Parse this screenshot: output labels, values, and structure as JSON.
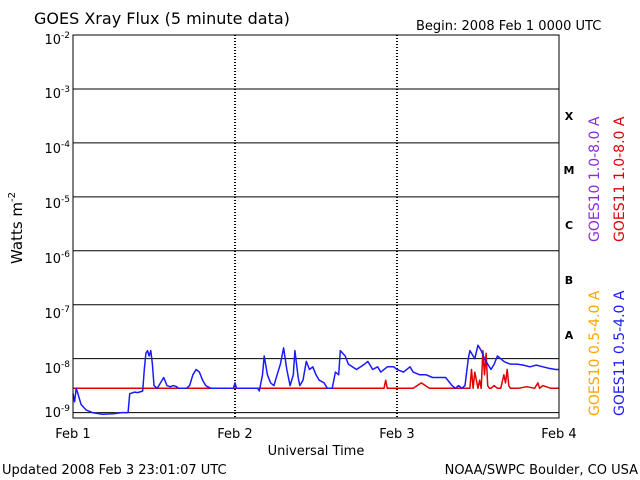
{
  "chart_data": {
    "type": "line",
    "title": "GOES Xray Flux (5 minute data)",
    "begin_label": "Begin:  2008 Feb 1 0000 UTC",
    "xlabel": "Universal Time",
    "ylabel": "Watts m",
    "ylabel_superscript": "-2",
    "x_unit": "days since 2008 Feb 1 0000 UTC",
    "xlim": [
      0,
      3
    ],
    "x_ticks": [
      {
        "value": 0,
        "label": "Feb 1"
      },
      {
        "value": 1,
        "label": "Feb 2"
      },
      {
        "value": 2,
        "label": "Feb 3"
      },
      {
        "value": 3,
        "label": "Feb 4"
      }
    ],
    "y_scale": "log",
    "ylim_exponent": [
      -9.1,
      -2
    ],
    "y_ticks": [
      {
        "base": "10",
        "exp": "-2",
        "value": -2
      },
      {
        "base": "10",
        "exp": "-3",
        "value": -3
      },
      {
        "base": "10",
        "exp": "-4",
        "value": -4
      },
      {
        "base": "10",
        "exp": "-5",
        "value": -5
      },
      {
        "base": "10",
        "exp": "-6",
        "value": -6
      },
      {
        "base": "10",
        "exp": "-7",
        "value": -7
      },
      {
        "base": "10",
        "exp": "-8",
        "value": -8
      },
      {
        "base": "10",
        "exp": "-9",
        "value": -9
      }
    ],
    "flare_classes": [
      {
        "label": "X",
        "value": -3.5
      },
      {
        "label": "M",
        "value": -4.5
      },
      {
        "label": "C",
        "value": -5.5
      },
      {
        "label": "B",
        "value": -6.5
      },
      {
        "label": "A",
        "value": -7.5
      }
    ],
    "grid": "horizontal lines at each decade; dashed vertical lines at day boundaries",
    "legend": [
      {
        "name": "GOES10 1.0-8.0 A",
        "color": "#8a2be2"
      },
      {
        "name": "GOES11 1.0-8.0 A",
        "color": "#e00000"
      },
      {
        "name": "GOES10 0.5-4.0 A",
        "color": "#ffa500"
      },
      {
        "name": "GOES11 0.5-4.0 A",
        "color": "#1a1aff"
      }
    ],
    "series": [
      {
        "name": "GOES11 0.5-4.0 A",
        "color": "#1a1aff",
        "x": [
          0.0,
          0.01,
          0.02,
          0.03,
          0.05,
          0.08,
          0.12,
          0.18,
          0.25,
          0.3,
          0.34,
          0.35,
          0.38,
          0.4,
          0.43,
          0.44,
          0.45,
          0.46,
          0.47,
          0.48,
          0.49,
          0.5,
          0.52,
          0.54,
          0.56,
          0.58,
          0.6,
          0.62,
          0.64,
          0.65,
          0.7,
          0.72,
          0.74,
          0.76,
          0.78,
          0.8,
          0.82,
          0.85,
          0.88,
          0.92,
          0.96,
          0.99,
          1.0,
          1.01,
          1.05,
          1.1,
          1.14,
          1.15,
          1.17,
          1.18,
          1.2,
          1.22,
          1.24,
          1.26,
          1.28,
          1.3,
          1.32,
          1.34,
          1.36,
          1.37,
          1.39,
          1.4,
          1.42,
          1.44,
          1.46,
          1.48,
          1.5,
          1.52,
          1.55,
          1.57,
          1.6,
          1.62,
          1.64,
          1.65,
          1.68,
          1.7,
          1.75,
          1.8,
          1.82,
          1.85,
          1.88,
          1.9,
          1.94,
          1.98,
          2.0,
          2.04,
          2.08,
          2.1,
          2.14,
          2.18,
          2.22,
          2.25,
          2.3,
          2.34,
          2.36,
          2.38,
          2.4,
          2.42,
          2.44,
          2.45,
          2.46,
          2.47,
          2.48,
          2.5,
          2.52,
          2.54,
          2.56,
          2.58,
          2.6,
          2.62,
          2.64,
          2.66,
          2.68,
          2.7,
          2.74,
          2.78,
          2.82,
          2.86,
          2.9,
          2.94,
          2.98,
          3.0
        ],
        "y": [
          -8.65,
          -8.8,
          -8.55,
          -8.65,
          -8.85,
          -8.95,
          -9.0,
          -9.03,
          -9.02,
          -9.0,
          -9.0,
          -8.65,
          -8.62,
          -8.63,
          -8.6,
          -8.2,
          -7.9,
          -7.85,
          -7.95,
          -7.85,
          -8.1,
          -8.5,
          -8.55,
          -8.45,
          -8.35,
          -8.5,
          -8.52,
          -8.5,
          -8.52,
          -8.55,
          -8.55,
          -8.5,
          -8.3,
          -8.2,
          -8.25,
          -8.4,
          -8.5,
          -8.55,
          -8.55,
          -8.55,
          -8.55,
          -8.55,
          -8.45,
          -8.55,
          -8.55,
          -8.55,
          -8.55,
          -8.6,
          -8.3,
          -7.95,
          -8.3,
          -8.45,
          -8.5,
          -8.3,
          -8.1,
          -7.8,
          -8.2,
          -8.5,
          -8.3,
          -7.85,
          -8.35,
          -8.5,
          -8.4,
          -8.05,
          -8.2,
          -8.15,
          -8.3,
          -8.4,
          -8.45,
          -8.55,
          -8.55,
          -8.25,
          -8.3,
          -7.85,
          -7.95,
          -8.1,
          -8.2,
          -8.1,
          -8.05,
          -8.2,
          -8.15,
          -8.25,
          -8.15,
          -8.15,
          -8.2,
          -8.25,
          -8.15,
          -8.25,
          -8.3,
          -8.3,
          -8.35,
          -8.35,
          -8.35,
          -8.5,
          -8.55,
          -8.5,
          -8.55,
          -8.5,
          -8.0,
          -7.85,
          -7.9,
          -7.95,
          -8.0,
          -7.75,
          -7.85,
          -8.0,
          -8.1,
          -8.2,
          -8.1,
          -7.95,
          -8.0,
          -8.05,
          -8.08,
          -8.1,
          -8.1,
          -8.12,
          -8.15,
          -8.12,
          -8.15,
          -8.18,
          -8.2,
          -8.2
        ]
      },
      {
        "name": "GOES11 1.0-8.0 A",
        "color": "#e00000",
        "x": [
          0.0,
          0.5,
          1.0,
          1.5,
          1.92,
          1.93,
          1.94,
          2.0,
          2.1,
          2.15,
          2.2,
          2.35,
          2.45,
          2.46,
          2.47,
          2.48,
          2.5,
          2.51,
          2.52,
          2.53,
          2.54,
          2.55,
          2.56,
          2.57,
          2.58,
          2.6,
          2.62,
          2.64,
          2.66,
          2.67,
          2.68,
          2.69,
          2.7,
          2.75,
          2.8,
          2.85,
          2.87,
          2.88,
          2.9,
          2.95,
          3.0
        ],
        "y": [
          -8.55,
          -8.55,
          -8.55,
          -8.55,
          -8.55,
          -8.4,
          -8.55,
          -8.55,
          -8.55,
          -8.45,
          -8.55,
          -8.55,
          -8.55,
          -8.2,
          -8.55,
          -8.25,
          -8.55,
          -8.4,
          -8.55,
          -7.85,
          -8.3,
          -7.9,
          -8.5,
          -8.55,
          -8.55,
          -8.5,
          -8.55,
          -8.55,
          -8.3,
          -8.45,
          -8.2,
          -8.5,
          -8.55,
          -8.55,
          -8.52,
          -8.55,
          -8.45,
          -8.55,
          -8.5,
          -8.55,
          -8.55
        ]
      }
    ]
  },
  "footer": {
    "updated": "Updated 2008 Feb  3 23:01:07 UTC",
    "credit": "NOAA/SWPC Boulder, CO USA"
  }
}
